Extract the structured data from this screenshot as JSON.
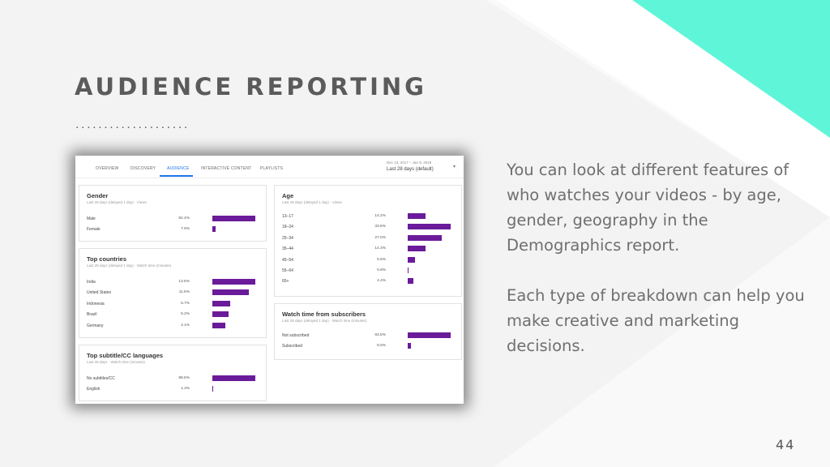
{
  "colors": {
    "accent": "#5ff5d8",
    "bar": "#6a1b9a",
    "title": "#5b5b5b",
    "active_tab": "#1a73e8"
  },
  "slide": {
    "title": "AUDIENCE REPORTING",
    "dots": "....................",
    "paragraph1": "You can look at different features of who watches your videos - by age, gender, geography in the Demographics report.",
    "paragraph2": "Each type of breakdown can help you make creative and marketing decisions.",
    "page_number": "44"
  },
  "screenshot": {
    "tabs": [
      {
        "label": "OVERVIEW",
        "active": false
      },
      {
        "label": "DISCOVERY",
        "active": false
      },
      {
        "label": "AUDIENCE",
        "active": true
      },
      {
        "label": "INTERACTIVE CONTENT",
        "active": false
      },
      {
        "label": "PLAYLISTS",
        "active": false
      }
    ],
    "date_range": "Dec 13, 2017 – Jan 9, 2018",
    "date_label": "Last 28 days (default)",
    "cards": [
      {
        "title": "Gender",
        "subtitle": "Last 28 days (delayed 1 day) · Views",
        "rows": [
          {
            "label": "Male",
            "value": 92.4,
            "pct": "92.4%"
          },
          {
            "label": "Female",
            "value": 7.6,
            "pct": "7.6%"
          }
        ]
      },
      {
        "title": "Top countries",
        "subtitle": "Last 28 days (delayed 1 day) · Watch time (minutes)",
        "rows": [
          {
            "label": "India",
            "value": 13.6,
            "pct": "13.6%"
          },
          {
            "label": "United States",
            "value": 11.5,
            "pct": "11.5%"
          },
          {
            "label": "Indonesia",
            "value": 5.7,
            "pct": "5.7%"
          },
          {
            "label": "Brazil",
            "value": 5.2,
            "pct": "5.2%"
          },
          {
            "label": "Germany",
            "value": 4.1,
            "pct": "4.1%"
          }
        ]
      },
      {
        "title": "Top subtitle/CC languages",
        "subtitle": "Last 28 days · Watch time (minutes)",
        "rows": [
          {
            "label": "No subtitles/CC",
            "value": 98.6,
            "pct": "98.6%"
          },
          {
            "label": "English",
            "value": 1.4,
            "pct": "1.4%"
          }
        ]
      },
      {
        "title": "Age",
        "subtitle": "Last 28 days (delayed 1 day) · Views",
        "rows": [
          {
            "label": "13–17",
            "value": 14.2,
            "pct": "14.2%"
          },
          {
            "label": "18–24",
            "value": 33.8,
            "pct": "33.8%"
          },
          {
            "label": "25–34",
            "value": 27.0,
            "pct": "27.0%"
          },
          {
            "label": "35–44",
            "value": 14.3,
            "pct": "14.3%"
          },
          {
            "label": "45–54",
            "value": 5.5,
            "pct": "5.5%"
          },
          {
            "label": "55–64",
            "value": 0.8,
            "pct": "0.8%"
          },
          {
            "label": "65+",
            "value": 4.4,
            "pct": "4.4%"
          }
        ]
      },
      {
        "title": "Watch time from subscribers",
        "subtitle": "Last 28 days (delayed 1 day) · Watch time (minutes)",
        "rows": [
          {
            "label": "Not subscribed",
            "value": 93.5,
            "pct": "93.5%"
          },
          {
            "label": "Subscribed",
            "value": 6.5,
            "pct": "6.5%"
          }
        ]
      }
    ]
  }
}
